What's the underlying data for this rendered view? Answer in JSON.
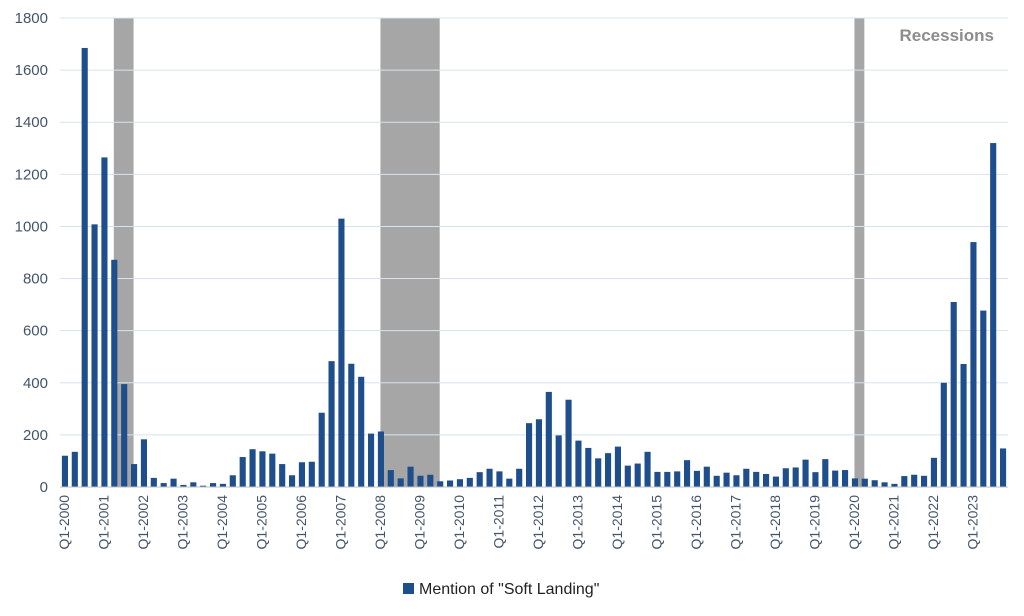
{
  "chart_data": {
    "type": "bar",
    "ylim": [
      0,
      1800
    ],
    "yticks": [
      0,
      200,
      400,
      600,
      800,
      1000,
      1200,
      1400,
      1600,
      1800
    ],
    "xtick_labels": [
      "Q1-2000",
      "Q1-2001",
      "Q1-2002",
      "Q1-2003",
      "Q1-2004",
      "Q1-2005",
      "Q1-2006",
      "Q1-2007",
      "Q1-2008",
      "Q1-2009",
      "Q1-2010",
      "Q1-2011",
      "Q1-2012",
      "Q1-2013",
      "Q1-2014",
      "Q1-2015",
      "Q1-2016",
      "Q1-2017",
      "Q1-2018",
      "Q1-2019",
      "Q1-2020",
      "Q1-2021",
      "Q1-2022",
      "Q1-2023"
    ],
    "grid": true,
    "legend_position": "bottom",
    "series": [
      {
        "name": "Mention of \"Soft Landing\"",
        "color": "#1f4e8c",
        "values": [
          120,
          135,
          1685,
          1008,
          1265,
          872,
          395,
          88,
          183,
          35,
          15,
          32,
          8,
          18,
          5,
          15,
          12,
          45,
          115,
          145,
          137,
          128,
          88,
          45,
          95,
          97,
          285,
          483,
          1030,
          473,
          423,
          205,
          213,
          65,
          33,
          78,
          43,
          47,
          22,
          25,
          30,
          35,
          57,
          70,
          60,
          32,
          70,
          245,
          260,
          365,
          198,
          335,
          178,
          150,
          110,
          130,
          155,
          82,
          90,
          135,
          58,
          58,
          60,
          103,
          62,
          78,
          43,
          55,
          45,
          70,
          58,
          50,
          40,
          72,
          75,
          105,
          57,
          107,
          63,
          65,
          33,
          32,
          26,
          18,
          12,
          42,
          47,
          43,
          112,
          400,
          710,
          472,
          940,
          677,
          1320,
          148
        ]
      }
    ],
    "recessions": {
      "label": "Recessions",
      "color": "#a6a6a6",
      "periods": [
        {
          "start_index": 5,
          "end_index": 7
        },
        {
          "start_index": 32,
          "end_index": 38
        },
        {
          "start_index": 80,
          "end_index": 81
        }
      ]
    }
  }
}
